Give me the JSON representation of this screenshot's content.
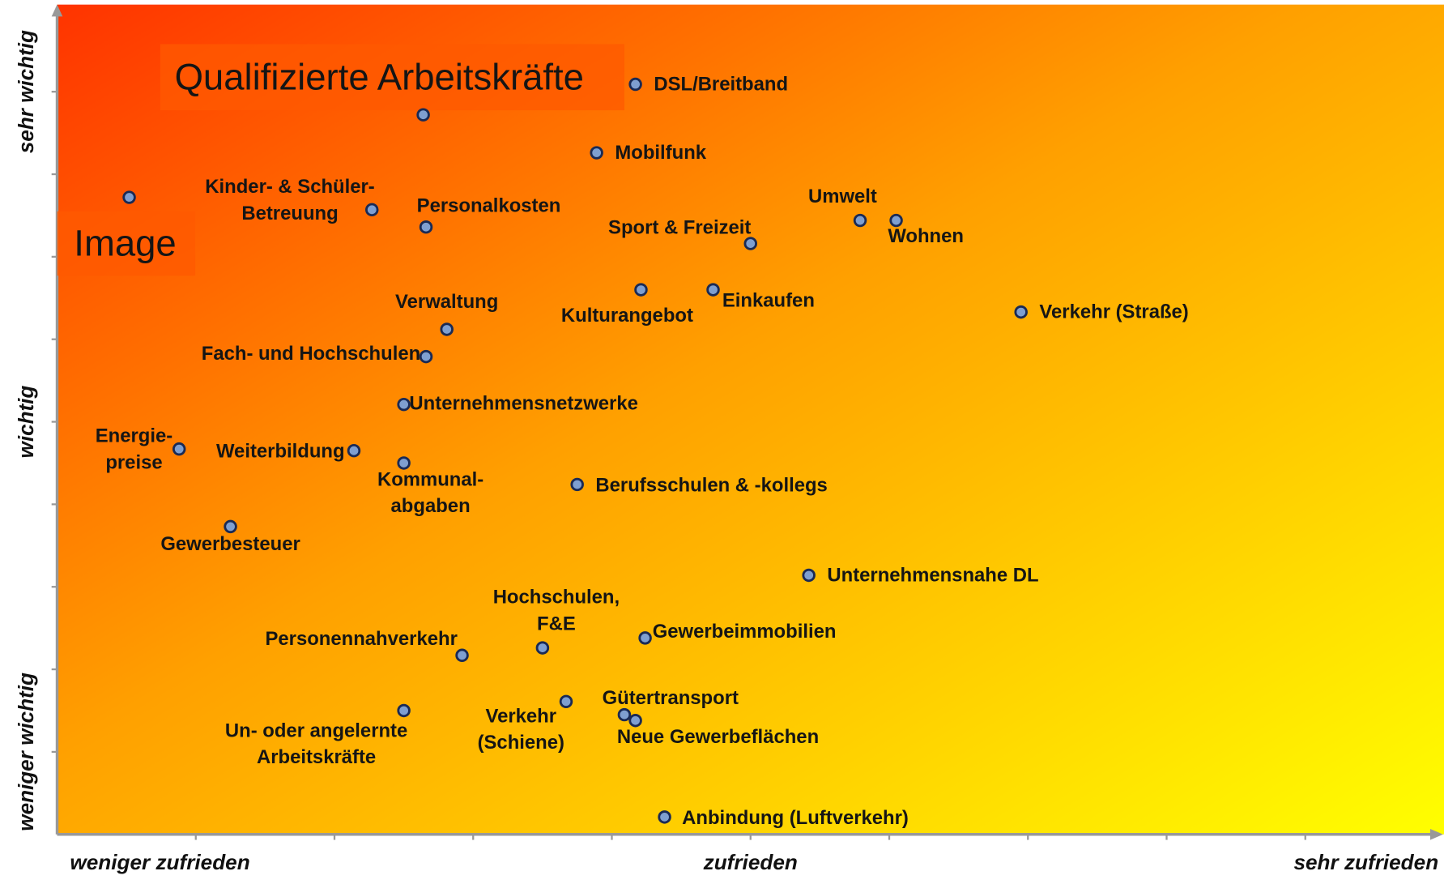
{
  "chart_data": {
    "type": "scatter",
    "xlim": [
      0,
      10
    ],
    "ylim": [
      0,
      10
    ],
    "xticks": [
      {
        "value": 1,
        "label": "weniger zufrieden"
      },
      {
        "value": 5,
        "label": "zufrieden"
      },
      {
        "value": 9.6,
        "label": "sehr zufrieden"
      }
    ],
    "yticks": [
      {
        "value": 9,
        "label": "sehr wichtig"
      },
      {
        "value": 5,
        "label": "wichtig"
      },
      {
        "value": 1,
        "label": "weniger wichtig"
      }
    ],
    "xminorticks": [
      1,
      2,
      3,
      4,
      5,
      6,
      7,
      8,
      9
    ],
    "yminorticks": [
      1,
      2,
      3,
      4,
      5,
      6,
      7,
      8,
      9
    ],
    "marker_color": "#7f9fd0",
    "labels": [
      [
        "DSL/Breitband"
      ],
      [
        "Qualifizierte Arbeitskräfte"
      ],
      [
        "Mobilfunk"
      ],
      [
        "Image"
      ],
      [
        "Kinder- & Schüler-",
        "Betreuung"
      ],
      [
        "Personalkosten"
      ],
      [
        "Umwelt"
      ],
      [
        "Wohnen"
      ],
      [
        "Sport & Freizeit"
      ],
      [
        "Kulturangebot"
      ],
      [
        "Einkaufen"
      ],
      [
        "Verkehr (Straße)"
      ],
      [
        "Verwaltung"
      ],
      [
        "Fach- und Hochschulen"
      ],
      [
        "Unternehmensnetzwerke"
      ],
      [
        "Energie-",
        "preise"
      ],
      [
        "Weiterbildung"
      ],
      [
        "Kommunal-",
        "abgaben"
      ],
      [
        "Berufsschulen & -kollegs"
      ],
      [
        "Gewerbesteuer"
      ],
      [
        "Unternehmensnahe DL"
      ],
      [
        "Gewerbeimmobilien"
      ],
      [
        "Hochschulen,",
        "F&E"
      ],
      [
        "Personennahverkehr"
      ],
      [
        "Un- oder angelernte",
        "Arbeitskräfte"
      ],
      [
        "Verkehr",
        "(Schiene)"
      ],
      [
        "Gütertransport"
      ],
      [
        "Neue Gewerbeflächen"
      ],
      [
        "Anbindung (Luftverkehr)"
      ]
    ],
    "x": [
      4.17,
      2.64,
      3.89,
      0.52,
      2.27,
      2.66,
      5.79,
      6.05,
      5.0,
      4.21,
      4.73,
      6.95,
      2.81,
      2.66,
      2.5,
      0.88,
      2.14,
      2.5,
      3.75,
      1.25,
      5.42,
      4.24,
      3.5,
      2.92,
      2.5,
      3.67,
      4.09,
      4.17,
      4.38
    ],
    "y": [
      9.09,
      8.72,
      8.26,
      7.72,
      7.57,
      7.36,
      7.44,
      7.44,
      7.16,
      6.6,
      6.6,
      6.33,
      6.12,
      5.79,
      5.21,
      4.67,
      4.65,
      4.5,
      4.24,
      3.73,
      3.14,
      2.38,
      2.26,
      2.17,
      1.5,
      1.61,
      1.45,
      1.38,
      0.21
    ]
  }
}
